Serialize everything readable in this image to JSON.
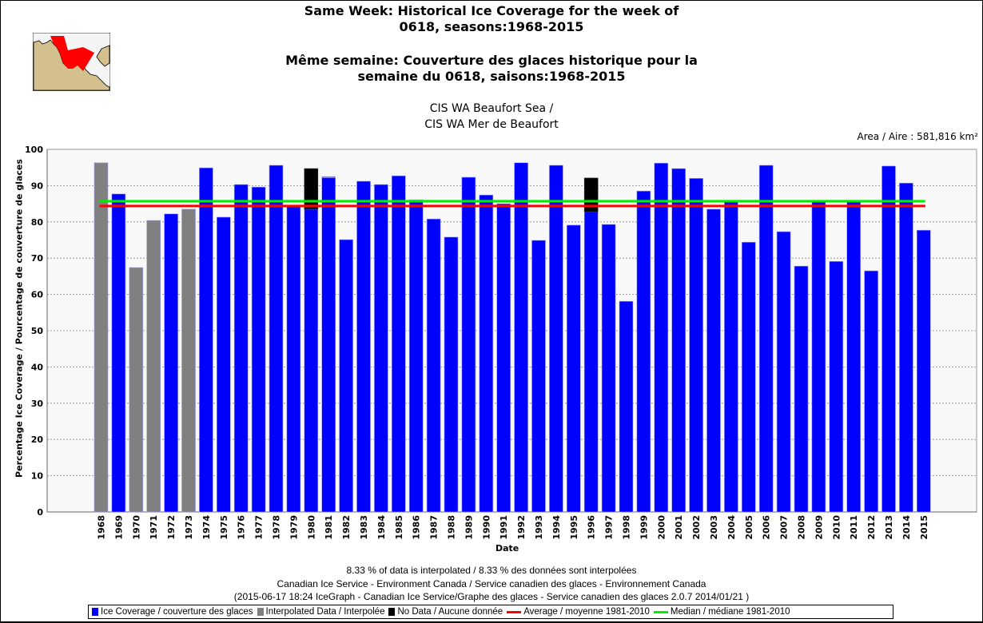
{
  "header": {
    "title_line1": "Same Week: Historical Ice Coverage for the week of",
    "title_line2": "0618, seasons:1968-2015",
    "title_fr_line1": "Même semaine: Couverture des glaces historique pour la",
    "title_fr_line2": "semaine du 0618, saisons:1968-2015",
    "region_line1": "CIS WA Beaufort Sea /",
    "region_line2": "CIS WA Mer de Beaufort",
    "area": "Area / Aire : 581,816 km²"
  },
  "colors": {
    "ice": "#0000ff",
    "interpolated": "#808080",
    "nodata": "#000000",
    "average": "#ff0000",
    "median": "#00ee00",
    "plot_bg": "#f8f8f8",
    "map_land": "#d4bf8e",
    "map_region": "#ff0000"
  },
  "chart_data": {
    "type": "bar",
    "title": "Same Week: Historical Ice Coverage for the week of 0618, seasons:1968-2015",
    "xlabel": "Date",
    "ylabel": "Percentage Ice Coverage / Pourcentage de couverture de glaces",
    "ylim": [
      0,
      100
    ],
    "yticks": [
      "0",
      "10",
      "20",
      "30",
      "40",
      "50",
      "60",
      "70",
      "80",
      "90",
      "100"
    ],
    "grid": true,
    "categories": [
      "1968",
      "1969",
      "1970",
      "1971",
      "1972",
      "1973",
      "1974",
      "1975",
      "1976",
      "1977",
      "1978",
      "1979",
      "1980",
      "1981",
      "1982",
      "1983",
      "1984",
      "1985",
      "1986",
      "1987",
      "1988",
      "1989",
      "1990",
      "1991",
      "1992",
      "1993",
      "1994",
      "1995",
      "1996",
      "1997",
      "1998",
      "1999",
      "2000",
      "2001",
      "2002",
      "2003",
      "2004",
      "2005",
      "2006",
      "2007",
      "2008",
      "2009",
      "2010",
      "2011",
      "2012",
      "2013",
      "2014",
      "2015"
    ],
    "series": [
      {
        "name": "Ice Coverage / couverture des glaces",
        "values": [
          0,
          87.7,
          0,
          0,
          82.2,
          0,
          94.9,
          81.3,
          90.3,
          89.6,
          95.6,
          84.3,
          83.5,
          92.2,
          75.1,
          91.2,
          90.3,
          92.7,
          86.1,
          80.8,
          75.8,
          92.3,
          87.4,
          85.0,
          96.3,
          74.9,
          95.6,
          79.1,
          82.8,
          79.3,
          58.1,
          88.5,
          96.2,
          94.7,
          92.0,
          83.5,
          85.7,
          74.4,
          95.6,
          77.3,
          67.8,
          85.7,
          69.1,
          85.7,
          66.5,
          95.4,
          90.7,
          77.7
        ]
      },
      {
        "name": "Interpolated Data / Interpolée",
        "values": [
          96.3,
          0,
          67.4,
          80.4,
          0,
          83.5,
          0,
          0,
          0,
          0,
          0,
          0,
          0,
          0.3,
          0,
          0,
          0,
          0,
          0,
          0,
          0,
          0,
          0,
          0,
          0,
          0,
          0,
          0,
          0,
          0,
          0,
          0,
          0,
          0,
          0,
          0,
          0,
          0,
          0,
          0,
          0,
          0,
          0,
          0,
          0,
          0,
          0,
          0
        ]
      },
      {
        "name": "No Data / Aucune donnée",
        "values": [
          0,
          0,
          0,
          0,
          0,
          0,
          0,
          0,
          0,
          0,
          0,
          0,
          11.2,
          0,
          0,
          0,
          0,
          0,
          0,
          0,
          0,
          0,
          0,
          0,
          0,
          0,
          0,
          0,
          9.3,
          0,
          0,
          0,
          0,
          0,
          0,
          0,
          0,
          0,
          0,
          0,
          0,
          0,
          0,
          0,
          0,
          0,
          0,
          0
        ]
      }
    ],
    "reference_lines": [
      {
        "name": "Average / moyenne 1981-2010",
        "value": 84.4
      },
      {
        "name": "Median / médiane 1981-2010",
        "value": 85.7
      }
    ],
    "legend_position": "bottom"
  },
  "footer": {
    "interpolated_note": "8.33 % of data is interpolated / 8.33 % des données sont interpolées",
    "source": "Canadian Ice Service - Environment Canada / Service canadien des glaces - Environnement Canada",
    "version": "(2015-06-17 18:24 IceGraph - Canadian Ice Service/Graphe des glaces - Service canadien des glaces 2.0.7 2014/01/21 )"
  },
  "legend": [
    {
      "label": "Ice Coverage / couverture des glaces",
      "kind": "box",
      "color": "#0000ff"
    },
    {
      "label": "Interpolated Data / Interpolée",
      "kind": "box",
      "color": "#808080"
    },
    {
      "label": "No Data / Aucune donnée",
      "kind": "box",
      "color": "#000000"
    },
    {
      "label": "Average / moyenne 1981-2010",
      "kind": "line",
      "color": "#ff0000"
    },
    {
      "label": "Median / médiane 1981-2010",
      "kind": "line",
      "color": "#00ee00"
    }
  ]
}
